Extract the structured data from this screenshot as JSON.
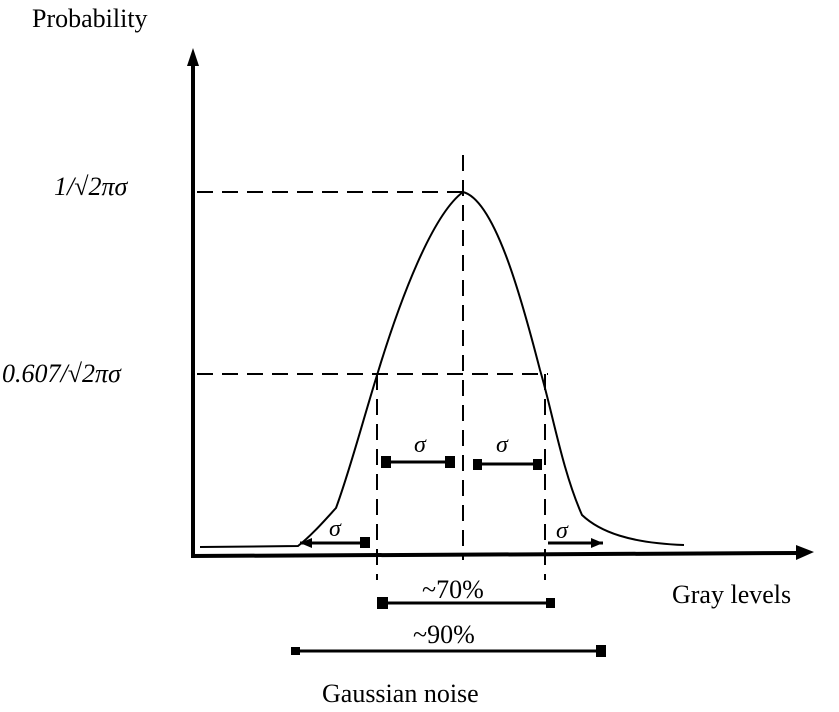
{
  "diagram": {
    "y_axis_label": "Probability",
    "x_axis_label": "Gray levels",
    "peak_label": "1/√2πσ",
    "half_label": "0.607/√2πσ",
    "sigma_symbol": "σ",
    "range_70_label": "~70%",
    "range_90_label": "~90%",
    "caption": "Gaussian noise"
  }
}
